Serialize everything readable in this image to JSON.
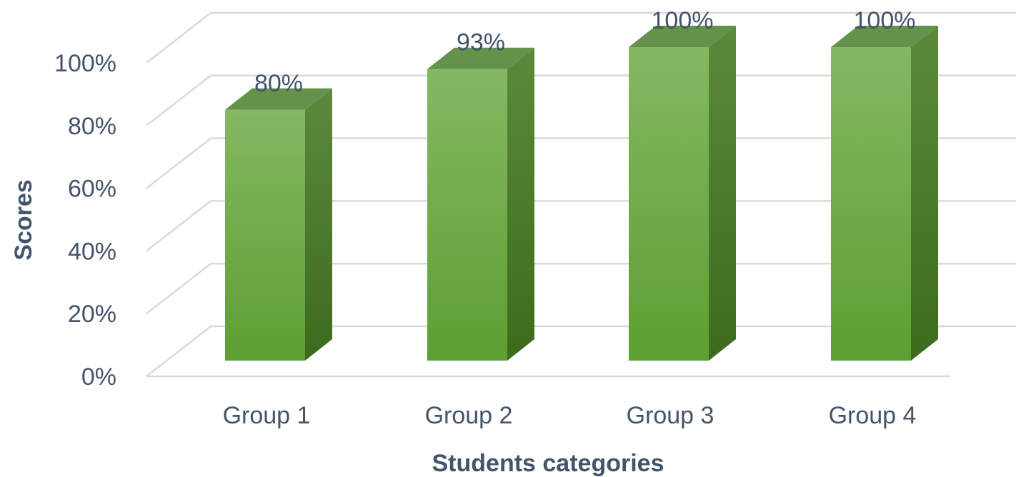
{
  "chart_data": {
    "type": "bar",
    "style": "3d-column",
    "categories": [
      "Group 1",
      "Group 2",
      "Group 3",
      "Group 4"
    ],
    "values": [
      80,
      93,
      100,
      100
    ],
    "data_labels": [
      "80%",
      "93%",
      "100%",
      "100%"
    ],
    "xlabel": "Students categories",
    "ylabel": "Scores",
    "ylim": [
      0,
      100
    ],
    "yticks": [
      0,
      20,
      40,
      60,
      80,
      100
    ],
    "ytick_labels": [
      "0%",
      "20%",
      "40%",
      "60%",
      "80%",
      "100%"
    ],
    "grid": true,
    "legend": "none"
  },
  "colors": {
    "bar_front_top": "#84b862",
    "bar_front_bottom": "#5d9f33",
    "bar_side_top": "#5b8a3c",
    "bar_side_bottom": "#3c6b1d",
    "bar_top": "#64924a",
    "grid": "#d9d9d9",
    "text": "#44546a"
  }
}
